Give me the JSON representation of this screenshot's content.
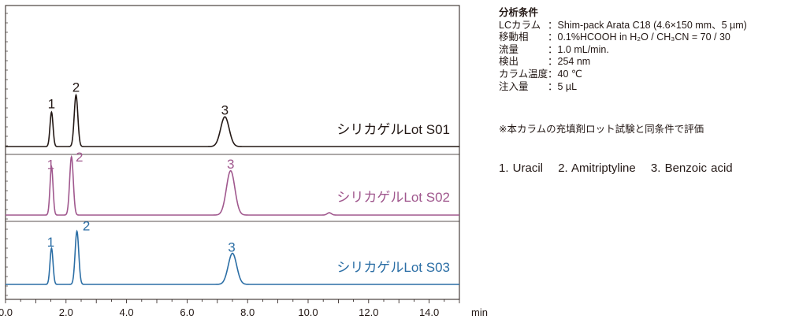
{
  "chart_data": {
    "type": "line",
    "title": "",
    "xlabel": "min",
    "ylabel": "",
    "xlim": [
      0,
      15
    ],
    "x_ticks": [
      "0.0",
      "2.0",
      "4.0",
      "6.0",
      "8.0",
      "10.0",
      "12.0",
      "14.0"
    ],
    "grid": false,
    "series": [
      {
        "name": "シリカゲルLot S01",
        "color": "#231815",
        "peaks": [
          {
            "label": "1",
            "rt": 1.52,
            "height": 0.95
          },
          {
            "label": "2",
            "rt": 2.33,
            "height": 1.42
          },
          {
            "label": "3",
            "rt": 7.25,
            "height": 0.82
          }
        ]
      },
      {
        "name": "シリカゲルLot S02",
        "color": "#a0588e",
        "peaks": [
          {
            "label": "1",
            "rt": 1.52,
            "height": 0.83
          },
          {
            "label": "2",
            "rt": 2.18,
            "height": 1.0
          },
          {
            "label": "3",
            "rt": 7.44,
            "height": 0.76
          }
        ]
      },
      {
        "name": "シリカゲルLot S03",
        "color": "#2b6ea5",
        "peaks": [
          {
            "label": "1",
            "rt": 1.52,
            "height": 0.92
          },
          {
            "label": "2",
            "rt": 2.36,
            "height": 1.35
          },
          {
            "label": "3",
            "rt": 7.5,
            "height": 0.79
          }
        ]
      }
    ]
  },
  "conditions": {
    "title": "分析条件",
    "rows": [
      {
        "key": "LCカラム",
        "value": "：Shim-pack Arata C18 (4.6×150 mm、5 µm)"
      },
      {
        "key": "移動相",
        "value": "：0.1%HCOOH in H₂O / CH₃CN = 70 / 30"
      },
      {
        "key": "流量",
        "value": "：1.0 mL/min."
      },
      {
        "key": "検出",
        "value": "：254 nm"
      },
      {
        "key": "カラム温度",
        "value": "：40 ℃"
      },
      {
        "key": "注入量",
        "value": "：5 µL"
      }
    ],
    "note": "※本カラムの充填剤ロット試験と同条件で評価"
  },
  "compounds": [
    "1. Uracil",
    "2. Amitriptyline",
    "3. Benzoic acid"
  ]
}
